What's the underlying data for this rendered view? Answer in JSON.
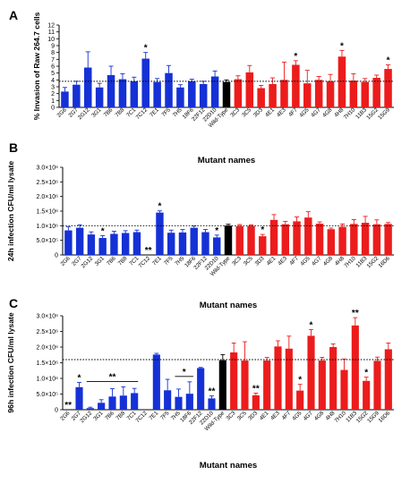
{
  "colors": {
    "blue": "#1531d6",
    "black": "#000000",
    "red": "#ec1c1c"
  },
  "chart_data": [
    {
      "type": "bar",
      "panel": "A",
      "ylabel": "% Invasion of Raw 264.7 cells",
      "xlabel": "Mutant names",
      "ylim": [
        0,
        12
      ],
      "yticks": [
        "0",
        "1",
        "2",
        "3",
        "4",
        "5",
        "6",
        "7",
        "8",
        "9",
        "10",
        "11",
        "12"
      ],
      "reference_line": 3.8,
      "categories": [
        "2G6",
        "2G7",
        "2G12",
        "3G1",
        "7B6",
        "7B8",
        "7C1",
        "7C12",
        "7E1",
        "7F5",
        "7H5",
        "18F6",
        "22F12",
        "22D10",
        "Wild-Type",
        "3C3",
        "3C5",
        "3D3",
        "4E1",
        "4E3",
        "4F7",
        "4G5",
        "4G7",
        "4G8",
        "4H8",
        "7H10",
        "11B3",
        "15G2",
        "15G9"
      ],
      "colors": [
        "blue",
        "blue",
        "blue",
        "blue",
        "blue",
        "blue",
        "blue",
        "blue",
        "blue",
        "blue",
        "blue",
        "blue",
        "blue",
        "blue",
        "black",
        "red",
        "red",
        "red",
        "red",
        "red",
        "red",
        "red",
        "red",
        "red",
        "red",
        "red",
        "red",
        "red",
        "red"
      ],
      "values": [
        2.3,
        3.3,
        5.8,
        2.9,
        4.7,
        4.1,
        3.8,
        7.1,
        3.7,
        5.0,
        2.9,
        3.8,
        3.4,
        4.5,
        3.7,
        4.1,
        5.1,
        2.8,
        3.4,
        4.0,
        6.2,
        3.5,
        4.0,
        3.8,
        7.4,
        3.9,
        3.7,
        4.3,
        5.6
      ],
      "errors": [
        0.6,
        0.5,
        2.3,
        0.6,
        1.3,
        0.8,
        0.6,
        0.9,
        0.5,
        1.1,
        0.4,
        0.3,
        0.4,
        0.8,
        0.3,
        0.5,
        1.0,
        0.4,
        0.9,
        2.6,
        0.6,
        1.9,
        0.5,
        1.0,
        0.9,
        1.0,
        0.5,
        0.4,
        0.6
      ],
      "annotations": [
        {
          "category": "7C12",
          "text": "*"
        },
        {
          "category": "4F7",
          "text": "*"
        },
        {
          "category": "4H8",
          "text": "*"
        },
        {
          "category": "15G9",
          "text": "*"
        }
      ]
    },
    {
      "type": "bar",
      "panel": "B",
      "ylabel": "24h infection CFU/ml lysate",
      "xlabel": "Mutant names",
      "ylim": [
        0,
        3000000
      ],
      "yticks": [
        "0",
        "5.0×10⁵",
        "1.0×10⁶",
        "1.5×10⁶",
        "2.0×10⁶",
        "2.5×10⁶",
        "3.0×10⁶"
      ],
      "reference_line": 1000000,
      "categories": [
        "2G6",
        "2G7",
        "2G12",
        "3G1",
        "7B6",
        "7B8",
        "7C1",
        "7C12",
        "7E1",
        "7F5",
        "7H5",
        "18F6",
        "22F12",
        "22D10",
        "Wild-Type",
        "3C3",
        "3C5",
        "3D3",
        "4E1",
        "4E3",
        "4F7",
        "4G5",
        "4G7",
        "4G8",
        "4H8",
        "7H10",
        "11B3",
        "15G2",
        "16D6"
      ],
      "colors": [
        "blue",
        "blue",
        "blue",
        "blue",
        "blue",
        "blue",
        "blue",
        "blue",
        "blue",
        "blue",
        "blue",
        "blue",
        "blue",
        "blue",
        "black",
        "red",
        "red",
        "red",
        "red",
        "red",
        "red",
        "red",
        "red",
        "red",
        "red",
        "red",
        "red",
        "red",
        "red"
      ],
      "values": [
        840000,
        930000,
        700000,
        580000,
        720000,
        750000,
        780000,
        0,
        1450000,
        760000,
        770000,
        930000,
        780000,
        600000,
        1000000,
        980000,
        990000,
        640000,
        1200000,
        1050000,
        1150000,
        1280000,
        1070000,
        880000,
        960000,
        1060000,
        1100000,
        1050000,
        1060000
      ],
      "errors": [
        120000,
        100000,
        90000,
        80000,
        90000,
        80000,
        70000,
        0,
        60000,
        90000,
        100000,
        60000,
        90000,
        80000,
        50000,
        60000,
        40000,
        60000,
        180000,
        100000,
        150000,
        200000,
        60000,
        40000,
        100000,
        150000,
        220000,
        150000,
        50000
      ],
      "annotations": [
        {
          "category": "3G1",
          "text": "*"
        },
        {
          "category": "7C12",
          "text": "**"
        },
        {
          "category": "7E1",
          "text": "*"
        },
        {
          "category": "22D10",
          "text": "*"
        },
        {
          "category": "3D3",
          "text": "*"
        }
      ]
    },
    {
      "type": "bar",
      "panel": "C",
      "ylabel": "96h infection CFU/ml lysate",
      "xlabel": "Mutant names",
      "ylim": [
        0,
        3000000
      ],
      "yticks": [
        "0",
        "5.0×10⁵",
        "1.0×10⁶",
        "1.5×10⁶",
        "2.0×10⁶",
        "2.5×10⁶",
        "3.0×10⁶"
      ],
      "reference_line": 1600000,
      "categories": [
        "2G6",
        "2G7",
        "2G12",
        "3G1",
        "7B6",
        "7B8",
        "7C1",
        "7C12",
        "7E1",
        "7F5",
        "7H5",
        "18F6",
        "22F12",
        "22D10",
        "Wild-Type",
        "3C3",
        "3C5",
        "3D3",
        "4E1",
        "4E3",
        "4F7",
        "4G5",
        "4G7",
        "4G8",
        "4H8",
        "7H10",
        "11B3",
        "15G2",
        "15G9",
        "16D6"
      ],
      "colors": [
        "blue",
        "blue",
        "blue",
        "blue",
        "blue",
        "blue",
        "blue",
        "blue",
        "blue",
        "blue",
        "blue",
        "blue",
        "blue",
        "blue",
        "black",
        "red",
        "red",
        "red",
        "red",
        "red",
        "red",
        "red",
        "red",
        "red",
        "red",
        "red",
        "red",
        "red",
        "red",
        "red"
      ],
      "values": [
        0,
        720000,
        50000,
        220000,
        420000,
        450000,
        530000,
        0,
        1760000,
        620000,
        410000,
        510000,
        1330000,
        360000,
        1580000,
        1830000,
        1570000,
        460000,
        1570000,
        2020000,
        1950000,
        610000,
        2360000,
        1570000,
        2000000,
        1270000,
        2690000,
        920000,
        1560000,
        1930000
      ],
      "errors": [
        0,
        150000,
        30000,
        100000,
        250000,
        280000,
        150000,
        0,
        40000,
        350000,
        250000,
        380000,
        20000,
        80000,
        180000,
        300000,
        600000,
        70000,
        100000,
        180000,
        400000,
        200000,
        200000,
        100000,
        100000,
        350000,
        250000,
        120000,
        120000,
        200000
      ],
      "annotations": [
        {
          "category": "2G6",
          "text": "**"
        },
        {
          "category": "2G7",
          "text": "*"
        },
        {
          "from": "2G12",
          "to": "7C1",
          "text": "**"
        },
        {
          "from": "7H5",
          "to": "18F6",
          "text": "*"
        },
        {
          "category": "22D10",
          "text": "**"
        },
        {
          "category": "3D3",
          "text": "**"
        },
        {
          "category": "4G5",
          "text": "*"
        },
        {
          "category": "4G7",
          "text": "*"
        },
        {
          "category": "11B3",
          "text": "**"
        },
        {
          "category": "15G2",
          "text": "*"
        }
      ]
    }
  ]
}
